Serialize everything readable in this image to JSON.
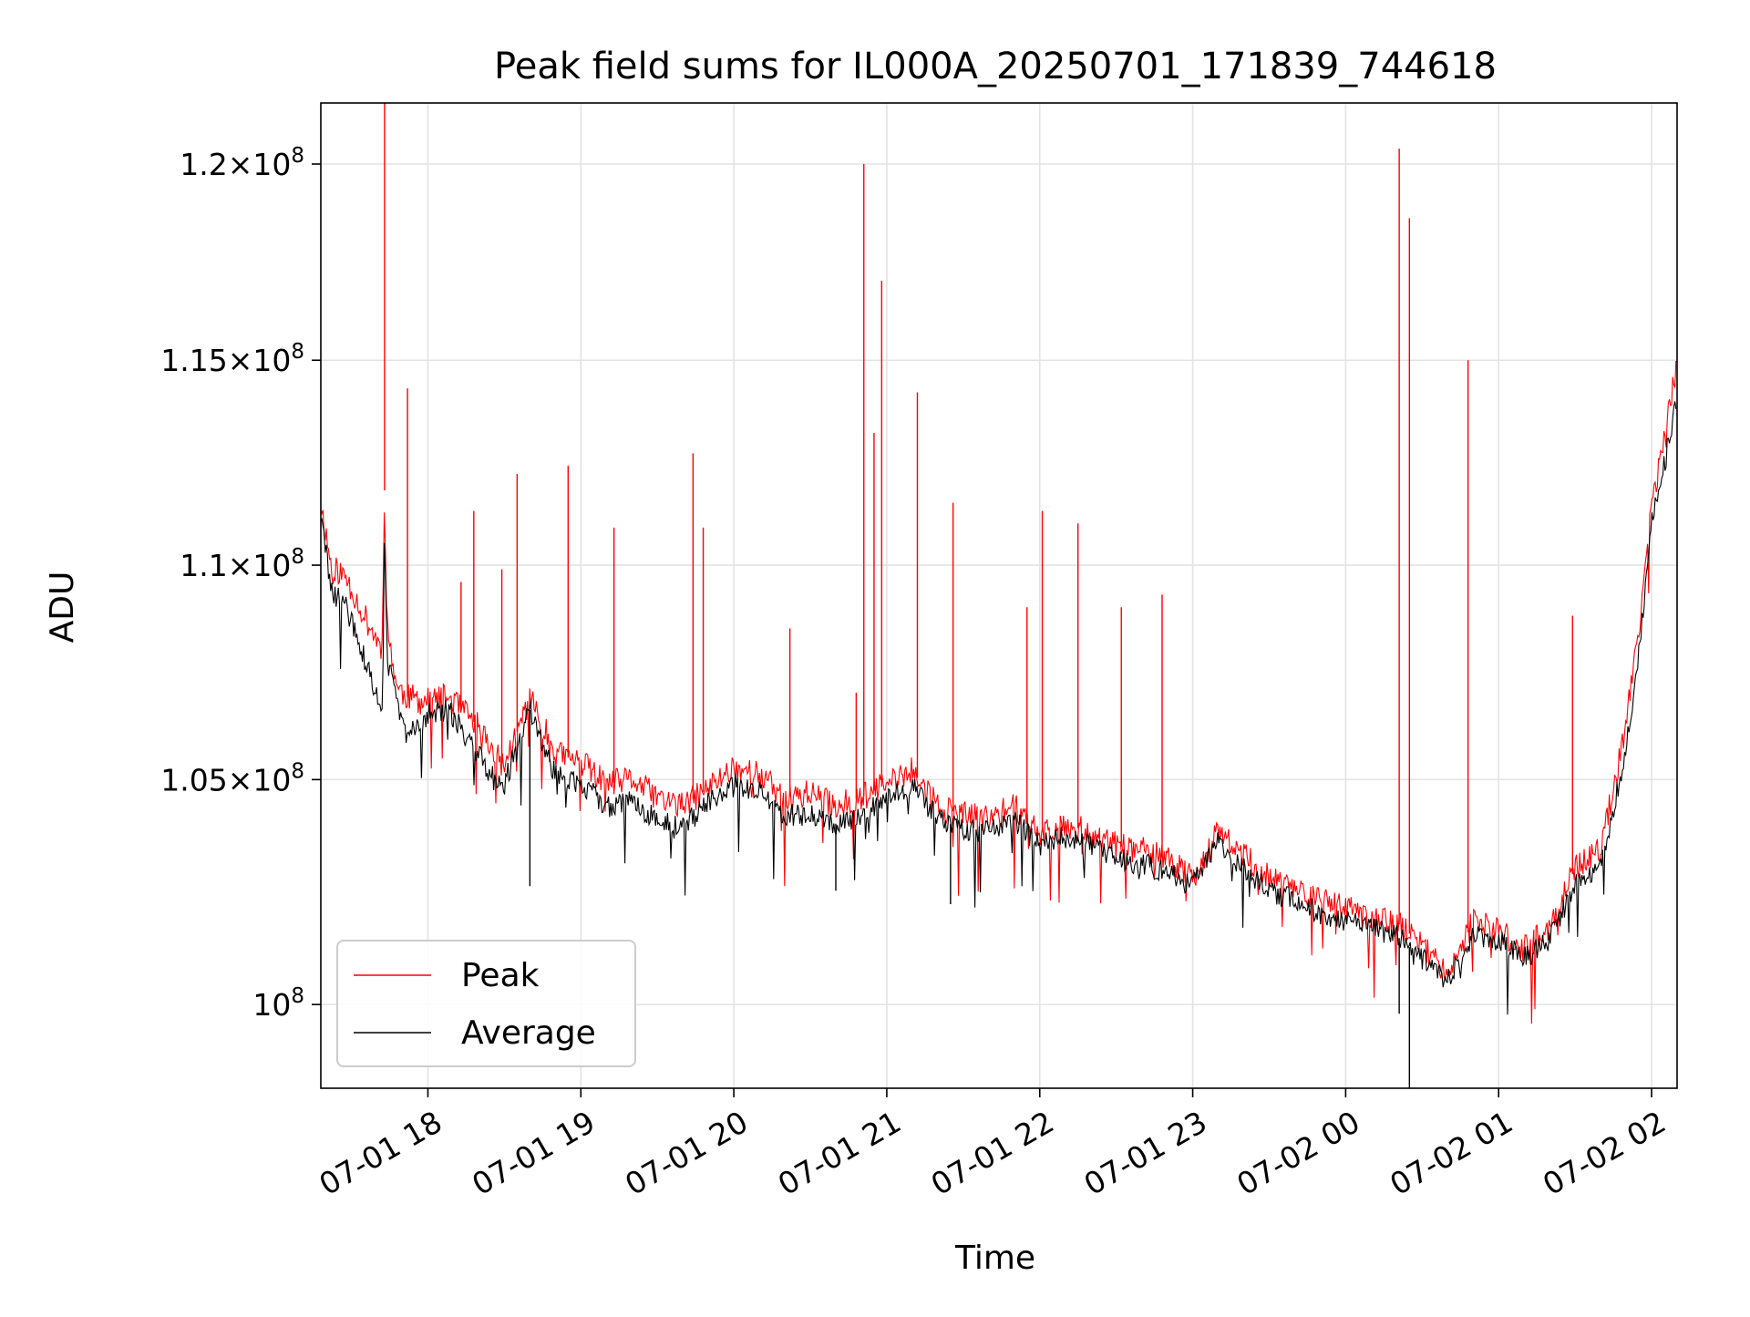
{
  "chart_data": {
    "type": "line",
    "title": "Peak field sums for IL000A_20250701_171839_744618",
    "xlabel": "Time",
    "ylabel": "ADU",
    "xlim": [
      "2025-07-01 17:18",
      "2025-07-02 02:10"
    ],
    "ylim": [
      98200000,
      121600000
    ],
    "yscale": "log",
    "grid": true,
    "legend_position": "lower-left",
    "x_ticks": [
      {
        "value": "2025-07-01 18:00",
        "label": "07-01 18"
      },
      {
        "value": "2025-07-01 19:00",
        "label": "07-01 19"
      },
      {
        "value": "2025-07-01 20:00",
        "label": "07-01 20"
      },
      {
        "value": "2025-07-01 21:00",
        "label": "07-01 21"
      },
      {
        "value": "2025-07-01 22:00",
        "label": "07-01 22"
      },
      {
        "value": "2025-07-01 23:00",
        "label": "07-01 23"
      },
      {
        "value": "2025-07-02 00:00",
        "label": "07-02 00"
      },
      {
        "value": "2025-07-02 01:00",
        "label": "07-02 01"
      },
      {
        "value": "2025-07-02 02:00",
        "label": "07-02 02"
      }
    ],
    "y_ticks": [
      {
        "value": 100000000,
        "mant": "",
        "exp": "8",
        "label": "10^8"
      },
      {
        "value": 105000000,
        "mant": "1.05",
        "exp": "8",
        "label": "1.05×10^8"
      },
      {
        "value": 110000000,
        "mant": "1.1",
        "exp": "8",
        "label": "1.1×10^8"
      },
      {
        "value": 115000000,
        "mant": "1.15",
        "exp": "8",
        "label": "1.15×10^8"
      },
      {
        "value": 120000000,
        "mant": "1.2",
        "exp": "8",
        "label": "1.2×10^8"
      }
    ],
    "series": [
      {
        "name": "Peak",
        "color": "#ff0000",
        "x": [
          "2025-07-01 17:18",
          "2025-07-01 17:22",
          "2025-07-01 17:28",
          "2025-07-01 17:35",
          "2025-07-01 17:42",
          "2025-07-01 17:43",
          "2025-07-01 17:44",
          "2025-07-01 17:48",
          "2025-07-01 17:52",
          "2025-07-01 18:00",
          "2025-07-01 18:08",
          "2025-07-01 18:15",
          "2025-07-01 18:20",
          "2025-07-01 18:26",
          "2025-07-01 18:30",
          "2025-07-01 18:40",
          "2025-07-01 18:50",
          "2025-07-01 19:00",
          "2025-07-01 19:10",
          "2025-07-01 19:20",
          "2025-07-01 19:30",
          "2025-07-01 19:40",
          "2025-07-01 19:50",
          "2025-07-01 20:00",
          "2025-07-01 20:10",
          "2025-07-01 20:20",
          "2025-07-01 20:30",
          "2025-07-01 20:40",
          "2025-07-01 20:50",
          "2025-07-01 21:00",
          "2025-07-01 21:10",
          "2025-07-01 21:20",
          "2025-07-01 21:30",
          "2025-07-01 21:40",
          "2025-07-01 21:50",
          "2025-07-01 22:00",
          "2025-07-01 22:10",
          "2025-07-01 22:20",
          "2025-07-01 22:30",
          "2025-07-01 22:40",
          "2025-07-01 22:50",
          "2025-07-01 23:00",
          "2025-07-01 23:10",
          "2025-07-01 23:20",
          "2025-07-01 23:30",
          "2025-07-01 23:40",
          "2025-07-01 23:50",
          "2025-07-02 00:00",
          "2025-07-02 00:10",
          "2025-07-02 00:20",
          "2025-07-02 00:30",
          "2025-07-02 00:40",
          "2025-07-02 00:50",
          "2025-07-02 01:00",
          "2025-07-02 01:10",
          "2025-07-02 01:20",
          "2025-07-02 01:30",
          "2025-07-02 01:40",
          "2025-07-02 01:45",
          "2025-07-02 01:50",
          "2025-07-02 01:55",
          "2025-07-02 02:00",
          "2025-07-02 02:05",
          "2025-07-02 02:10"
        ],
        "y": [
          111500000,
          110000000,
          109700000,
          108800000,
          108000000,
          111800000,
          108500000,
          107100000,
          106900000,
          106800000,
          106900000,
          106500000,
          106200000,
          105600000,
          105300000,
          106900000,
          105600000,
          105400000,
          104900000,
          105000000,
          104600000,
          104400000,
          104800000,
          105300000,
          105100000,
          104600000,
          104700000,
          104400000,
          104600000,
          104900000,
          105200000,
          104400000,
          104200000,
          104100000,
          104400000,
          103800000,
          104000000,
          103800000,
          103500000,
          103400000,
          103200000,
          102800000,
          103800000,
          103300000,
          102800000,
          102600000,
          102300000,
          102100000,
          101900000,
          101800000,
          101300000,
          100700000,
          101800000,
          101600000,
          101200000,
          101700000,
          103000000,
          103400000,
          104800000,
          106300000,
          108500000,
          111500000,
          113000000,
          115000000
        ]
      },
      {
        "name": "Average",
        "color": "#000000",
        "x": [
          "2025-07-01 17:18",
          "2025-07-01 17:22",
          "2025-07-01 17:28",
          "2025-07-01 17:35",
          "2025-07-01 17:42",
          "2025-07-01 17:43",
          "2025-07-01 17:44",
          "2025-07-01 17:48",
          "2025-07-01 17:52",
          "2025-07-01 18:00",
          "2025-07-01 18:08",
          "2025-07-01 18:15",
          "2025-07-01 18:20",
          "2025-07-01 18:26",
          "2025-07-01 18:30",
          "2025-07-01 18:40",
          "2025-07-01 18:50",
          "2025-07-01 19:00",
          "2025-07-01 19:10",
          "2025-07-01 19:20",
          "2025-07-01 19:30",
          "2025-07-01 19:40",
          "2025-07-01 19:50",
          "2025-07-01 20:00",
          "2025-07-01 20:10",
          "2025-07-01 20:20",
          "2025-07-01 20:30",
          "2025-07-01 20:40",
          "2025-07-01 20:50",
          "2025-07-01 21:00",
          "2025-07-01 21:10",
          "2025-07-01 21:20",
          "2025-07-01 21:30",
          "2025-07-01 21:40",
          "2025-07-01 21:50",
          "2025-07-01 22:00",
          "2025-07-01 22:10",
          "2025-07-01 22:20",
          "2025-07-01 22:30",
          "2025-07-01 22:40",
          "2025-07-01 22:50",
          "2025-07-01 23:00",
          "2025-07-01 23:10",
          "2025-07-01 23:20",
          "2025-07-01 23:30",
          "2025-07-01 23:40",
          "2025-07-01 23:50",
          "2025-07-02 00:00",
          "2025-07-02 00:10",
          "2025-07-02 00:20",
          "2025-07-02 00:30",
          "2025-07-02 00:40",
          "2025-07-02 00:50",
          "2025-07-02 01:00",
          "2025-07-02 01:10",
          "2025-07-02 01:20",
          "2025-07-02 01:30",
          "2025-07-02 01:40",
          "2025-07-02 01:45",
          "2025-07-02 01:50",
          "2025-07-02 01:55",
          "2025-07-02 02:00",
          "2025-07-02 02:05",
          "2025-07-02 02:10"
        ],
        "y": [
          111200000,
          109400000,
          109000000,
          107800000,
          106500000,
          111000000,
          107800000,
          106700000,
          106000000,
          106500000,
          106600000,
          106000000,
          105600000,
          105000000,
          104900000,
          106600000,
          105100000,
          104900000,
          104400000,
          104500000,
          104100000,
          103900000,
          104500000,
          104900000,
          104700000,
          104200000,
          104200000,
          104000000,
          104200000,
          104600000,
          104900000,
          104100000,
          103900000,
          103800000,
          104100000,
          103500000,
          103700000,
          103500000,
          103200000,
          103100000,
          102900000,
          102600000,
          103600000,
          103000000,
          102500000,
          102300000,
          102000000,
          101800000,
          101700000,
          101500000,
          101000000,
          100500000,
          101500000,
          101400000,
          101000000,
          101400000,
          102600000,
          103000000,
          104300000,
          105700000,
          108000000,
          111000000,
          112400000,
          114200000
        ]
      }
    ],
    "peak_spikes": [
      {
        "x": "2025-07-01 17:43",
        "y": 121600000
      },
      {
        "x": "2025-07-01 17:52",
        "y": 114300000
      },
      {
        "x": "2025-07-01 18:13",
        "y": 109600000
      },
      {
        "x": "2025-07-01 18:18",
        "y": 111300000
      },
      {
        "x": "2025-07-01 18:29",
        "y": 109900000
      },
      {
        "x": "2025-07-01 18:35",
        "y": 112200000
      },
      {
        "x": "2025-07-01 18:55",
        "y": 112400000
      },
      {
        "x": "2025-07-01 19:13",
        "y": 110900000
      },
      {
        "x": "2025-07-01 19:44",
        "y": 112700000
      },
      {
        "x": "2025-07-01 19:48",
        "y": 110900000
      },
      {
        "x": "2025-07-01 20:22",
        "y": 108500000
      },
      {
        "x": "2025-07-01 20:48",
        "y": 107000000
      },
      {
        "x": "2025-07-01 20:51",
        "y": 120000000
      },
      {
        "x": "2025-07-01 20:55",
        "y": 113200000
      },
      {
        "x": "2025-07-01 20:58",
        "y": 117000000
      },
      {
        "x": "2025-07-01 21:12",
        "y": 114200000
      },
      {
        "x": "2025-07-01 21:26",
        "y": 111500000
      },
      {
        "x": "2025-07-01 21:55",
        "y": 109000000
      },
      {
        "x": "2025-07-01 22:01",
        "y": 111300000
      },
      {
        "x": "2025-07-01 22:15",
        "y": 111000000
      },
      {
        "x": "2025-07-01 22:32",
        "y": 109000000
      },
      {
        "x": "2025-07-01 22:48",
        "y": 109300000
      },
      {
        "x": "2025-07-02 00:21",
        "y": 120400000
      },
      {
        "x": "2025-07-02 00:25",
        "y": 118600000
      },
      {
        "x": "2025-07-02 00:48",
        "y": 115000000
      },
      {
        "x": "2025-07-02 01:29",
        "y": 108800000
      }
    ],
    "average_dips": [
      {
        "x": "2025-07-01 18:40",
        "y": 102600000
      },
      {
        "x": "2025-07-01 20:40",
        "y": 102500000
      },
      {
        "x": "2025-07-01 21:25",
        "y": 102200000
      },
      {
        "x": "2025-07-02 00:21",
        "y": 99800000
      },
      {
        "x": "2025-07-02 00:25",
        "y": 98200000
      }
    ]
  }
}
